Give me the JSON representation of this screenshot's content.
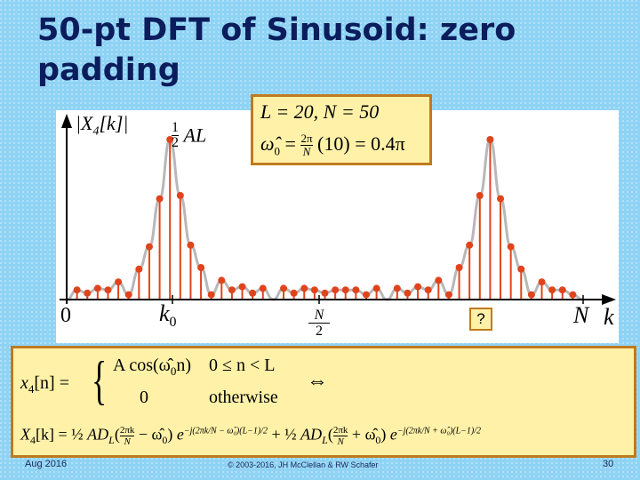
{
  "slide": {
    "title": "50-pt DFT of Sinusoid: zero padding",
    "footer_left": "Aug 2016",
    "footer_center": "© 2003-2016, JH McClellan & RW Schafer",
    "page_number": "30"
  },
  "params": {
    "line1": "L = 20, N = 50",
    "line2_lhs": "ω̂",
    "line2_sub": "0",
    "line2_frac_num": "2π",
    "line2_frac_den": "N",
    "line2_rhs": "(10) = 0.4π"
  },
  "plot_labels": {
    "ylabel": "|X",
    "ylabel_sub": "4",
    "ylabel_tail": "[k]|",
    "peak_frac_num": "1",
    "peak_frac_den": "2",
    "peak_text": "AL",
    "x0": "0",
    "k0": "k",
    "k0_sub": "0",
    "half_num": "N",
    "half_den": "2",
    "question": "?",
    "N": "N",
    "k": "k"
  },
  "formulas": {
    "x4_lhs": "x",
    "x4_sub": "4",
    "x4_tail": "[n] =",
    "case1_expr": "A cos(ω̂",
    "case1_sub": "0",
    "case1_tail": "n)",
    "case1_cond": "0 ≤ n < L",
    "case2_expr": "0",
    "case2_cond": "otherwise",
    "iff": "⇔",
    "X4_lhs": "X",
    "X4_sub": "4",
    "X4_tail": "[k] =",
    "half": "½",
    "term_a": "AD",
    "term_sub": "L",
    "frac_num": "2πk",
    "frac_den": "N",
    "minus_w": "− ω̂",
    "plus_w": "+ ω̂",
    "w_sub": "0",
    "exp_e": "e",
    "exp1": "−j(2πk/N − ω̂₀)(L−1)/2",
    "exp2": "−j(2πk/N + ω̂₀)(L−1)/2",
    "plus": "+"
  },
  "chart_data": {
    "type": "scatter",
    "title": "",
    "xlabel": "k",
    "ylabel": "|X4[k]|",
    "xlim": [
      0,
      50
    ],
    "ylim": [
      0,
      10
    ],
    "x": [
      1,
      2,
      3,
      4,
      5,
      6,
      7,
      8,
      9,
      10,
      11,
      12,
      13,
      14,
      15,
      16,
      17,
      18,
      19,
      20,
      21,
      22,
      23,
      24,
      25,
      26,
      27,
      28,
      29,
      30,
      31,
      32,
      33,
      34,
      35,
      36,
      37,
      38,
      39,
      40,
      41,
      42,
      43,
      44,
      45,
      46,
      47,
      48,
      49
    ],
    "values": [
      0.6,
      0.4,
      0.7,
      0.6,
      1.1,
      0.3,
      1.9,
      3.3,
      6.3,
      10,
      6.5,
      3.4,
      2.0,
      0.3,
      1.2,
      0.6,
      0.8,
      0.4,
      0.7,
      0.0,
      0.7,
      0.4,
      0.7,
      0.6,
      0.4,
      0.6,
      0.6,
      0.6,
      0.3,
      0.7,
      0.0,
      0.7,
      0.4,
      0.8,
      0.6,
      1.2,
      0.3,
      2.0,
      3.4,
      6.5,
      10,
      6.3,
      3.3,
      1.9,
      0.3,
      1.1,
      0.6,
      0.6,
      0.3
    ],
    "series_colors": {
      "stems": "#e0441c",
      "envelope": "#b8b8b8"
    }
  }
}
